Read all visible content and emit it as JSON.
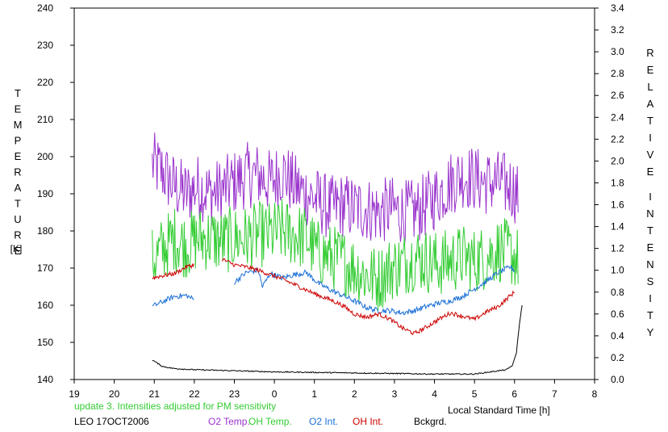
{
  "chart_data": {
    "type": "line",
    "left_axis_title": "TEMPERATURE",
    "left_axis_unit": "[K]",
    "right_axis_title": "RELATIVE INTENSITY",
    "x_axis_label": "Local Standard Time [h]",
    "note": "update 3. Intensities adjusted for PM sensitivity",
    "station_date": "LEO 17OCT2006",
    "x_ticks": [
      "19",
      "20",
      "21",
      "22",
      "23",
      "0",
      "1",
      "2",
      "3",
      "4",
      "5",
      "6",
      "7",
      "8"
    ],
    "x_range": [
      19,
      32
    ],
    "left_ticks": [
      "140",
      "150",
      "160",
      "170",
      "180",
      "190",
      "200",
      "210",
      "220",
      "230",
      "240"
    ],
    "left_range": [
      140,
      240
    ],
    "right_ticks": [
      "0.0",
      "0.2",
      "0.4",
      "0.6",
      "0.8",
      "1.0",
      "1.2",
      "1.4",
      "1.6",
      "1.8",
      "2.0",
      "2.2",
      "2.4",
      "2.6",
      "2.8",
      "3.0",
      "3.2",
      "3.4"
    ],
    "right_range": [
      0,
      3.4
    ],
    "series": [
      {
        "name": "O2 Temp.",
        "color": "#9933cc",
        "axis": "left",
        "points": [
          [
            20.95,
            198
          ],
          [
            21.2,
            196
          ],
          [
            21.5,
            192
          ],
          [
            21.8,
            190
          ],
          [
            22.1,
            192
          ],
          [
            22.4,
            190
          ],
          [
            22.7,
            191
          ],
          [
            23.0,
            193
          ],
          [
            23.3,
            195
          ],
          [
            23.6,
            195
          ],
          [
            23.9,
            193
          ],
          [
            24.2,
            196
          ],
          [
            24.5,
            192
          ],
          [
            24.8,
            190
          ],
          [
            25.1,
            188
          ],
          [
            25.4,
            186
          ],
          [
            25.7,
            187
          ],
          [
            26.0,
            186
          ],
          [
            26.3,
            186
          ],
          [
            26.6,
            185
          ],
          [
            26.9,
            186
          ],
          [
            27.2,
            185
          ],
          [
            27.5,
            185
          ],
          [
            27.8,
            187
          ],
          [
            28.1,
            190
          ],
          [
            28.4,
            193
          ],
          [
            28.7,
            195
          ],
          [
            29.0,
            194
          ],
          [
            29.3,
            193
          ],
          [
            29.6,
            193
          ],
          [
            29.9,
            192
          ],
          [
            30.1,
            190
          ]
        ],
        "noise": 9
      },
      {
        "name": "OH Temp.",
        "color": "#33cc33",
        "axis": "left",
        "points": [
          [
            20.95,
            172
          ],
          [
            21.2,
            175
          ],
          [
            21.5,
            178
          ],
          [
            21.8,
            176
          ],
          [
            22.1,
            178
          ],
          [
            22.4,
            178
          ],
          [
            22.7,
            177
          ],
          [
            23.0,
            178
          ],
          [
            23.3,
            178
          ],
          [
            23.6,
            179
          ],
          [
            23.9,
            179
          ],
          [
            24.2,
            180
          ],
          [
            24.5,
            179
          ],
          [
            24.8,
            178
          ],
          [
            25.1,
            174
          ],
          [
            25.4,
            173
          ],
          [
            25.7,
            172
          ],
          [
            26.0,
            170
          ],
          [
            26.3,
            168
          ],
          [
            26.6,
            167
          ],
          [
            26.9,
            170
          ],
          [
            27.2,
            171
          ],
          [
            27.5,
            173
          ],
          [
            27.8,
            172
          ],
          [
            28.1,
            171
          ],
          [
            28.4,
            172
          ],
          [
            28.7,
            173
          ],
          [
            29.0,
            172
          ],
          [
            29.3,
            173
          ],
          [
            29.6,
            175
          ],
          [
            29.9,
            174
          ],
          [
            30.1,
            172
          ]
        ],
        "noise": 9
      },
      {
        "name": "O2 Int.",
        "color": "#1a6fd6",
        "axis": "right",
        "points": [
          [
            20.95,
            0.67
          ],
          [
            21.2,
            0.71
          ],
          [
            21.5,
            0.76
          ],
          [
            21.8,
            0.77
          ],
          [
            22.0,
            0.73
          ]
        ],
        "points2": [
          [
            23.7,
            0.85
          ],
          [
            23.0,
            0.89
          ],
          [
            23.3,
            0.98
          ],
          [
            23.6,
            1.0
          ],
          [
            23.9,
            0.97
          ],
          [
            24.2,
            0.93
          ],
          [
            24.5,
            0.96
          ],
          [
            24.8,
            0.98
          ],
          [
            25.1,
            0.88
          ],
          [
            25.4,
            0.82
          ],
          [
            25.7,
            0.77
          ],
          [
            26.0,
            0.72
          ],
          [
            26.3,
            0.66
          ],
          [
            26.6,
            0.63
          ],
          [
            26.9,
            0.63
          ],
          [
            27.2,
            0.61
          ],
          [
            27.5,
            0.63
          ],
          [
            27.8,
            0.67
          ],
          [
            28.1,
            0.7
          ],
          [
            28.4,
            0.72
          ],
          [
            28.7,
            0.76
          ],
          [
            29.0,
            0.83
          ],
          [
            29.3,
            0.9
          ],
          [
            29.6,
            0.98
          ],
          [
            29.9,
            1.03
          ],
          [
            30.0,
            1.0
          ]
        ],
        "noise": 0.025
      },
      {
        "name": "OH Int.",
        "color": "#cc0000",
        "axis": "right",
        "points": [
          [
            20.95,
            0.93
          ],
          [
            21.2,
            0.95
          ],
          [
            21.5,
            0.97
          ],
          [
            21.8,
            1.03
          ],
          [
            22.0,
            1.05
          ]
        ],
        "points2": [
          [
            22.7,
            1.1
          ],
          [
            23.0,
            1.05
          ],
          [
            23.3,
            1.03
          ],
          [
            23.6,
            1.0
          ],
          [
            23.9,
            0.96
          ],
          [
            24.2,
            0.92
          ],
          [
            24.5,
            0.87
          ],
          [
            24.8,
            0.82
          ],
          [
            25.1,
            0.77
          ],
          [
            25.4,
            0.73
          ],
          [
            25.7,
            0.68
          ],
          [
            26.0,
            0.6
          ],
          [
            26.3,
            0.57
          ],
          [
            26.6,
            0.6
          ],
          [
            26.9,
            0.55
          ],
          [
            27.2,
            0.47
          ],
          [
            27.5,
            0.42
          ],
          [
            27.8,
            0.48
          ],
          [
            28.1,
            0.55
          ],
          [
            28.4,
            0.61
          ],
          [
            28.7,
            0.58
          ],
          [
            29.0,
            0.55
          ],
          [
            29.3,
            0.62
          ],
          [
            29.6,
            0.67
          ],
          [
            29.9,
            0.77
          ],
          [
            30.0,
            0.8
          ]
        ],
        "noise": 0.02
      },
      {
        "name": "Bckgrd.",
        "color": "#000000",
        "axis": "right",
        "points": [
          [
            20.95,
            0.18
          ],
          [
            21.2,
            0.12
          ],
          [
            21.5,
            0.1
          ],
          [
            22.0,
            0.09
          ],
          [
            23.0,
            0.08
          ],
          [
            24.0,
            0.07
          ],
          [
            25.0,
            0.065
          ],
          [
            26.0,
            0.06
          ],
          [
            27.0,
            0.055
          ],
          [
            28.0,
            0.05
          ],
          [
            29.0,
            0.05
          ],
          [
            29.8,
            0.09
          ],
          [
            29.95,
            0.13
          ],
          [
            30.05,
            0.25
          ],
          [
            30.12,
            0.5
          ],
          [
            30.2,
            0.71
          ]
        ],
        "noise": 0.005
      }
    ]
  }
}
